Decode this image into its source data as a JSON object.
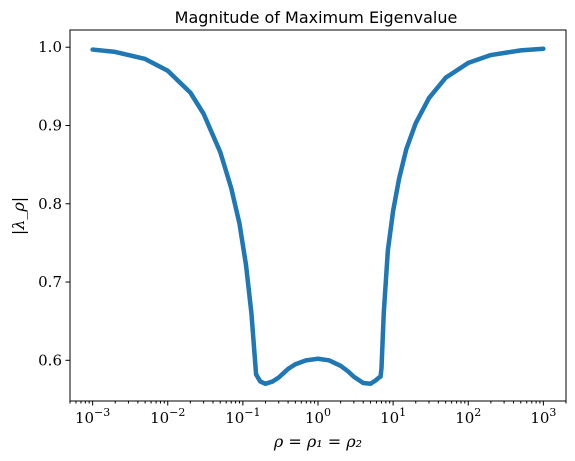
{
  "chart_data": {
    "type": "line",
    "title": "Magnitude of Maximum Eigenvalue",
    "xlabel": "ρ = ρ₁ = ρ₂",
    "ylabel": "|λ_ρ|",
    "x_scale": "log",
    "xlim": [
      0.0005,
      2000
    ],
    "ylim": [
      0.548,
      1.022
    ],
    "grid": false,
    "x_ticks": [
      {
        "value": 0.001,
        "base": "10",
        "exp": "−3"
      },
      {
        "value": 0.01,
        "base": "10",
        "exp": "−2"
      },
      {
        "value": 0.1,
        "base": "10",
        "exp": "−1"
      },
      {
        "value": 1,
        "base": "10",
        "exp": "0"
      },
      {
        "value": 10,
        "base": "10",
        "exp": "1"
      },
      {
        "value": 100,
        "base": "10",
        "exp": "2"
      },
      {
        "value": 1000,
        "base": "10",
        "exp": "3"
      }
    ],
    "y_ticks": [
      {
        "value": 0.6,
        "label": "0.6"
      },
      {
        "value": 0.7,
        "label": "0.7"
      },
      {
        "value": 0.8,
        "label": "0.8"
      },
      {
        "value": 0.9,
        "label": "0.9"
      },
      {
        "value": 1.0,
        "label": "1.0"
      }
    ],
    "series": [
      {
        "color": "#1f77b4",
        "x": [
          0.001,
          0.002,
          0.005,
          0.01,
          0.02,
          0.03,
          0.05,
          0.07,
          0.09,
          0.11,
          0.13,
          0.145,
          0.15,
          0.17,
          0.2,
          0.25,
          0.3,
          0.4,
          0.5,
          0.7,
          1,
          1.4,
          2,
          2.5,
          3,
          4,
          5,
          5.8,
          6.5,
          6.8,
          7.0,
          7.5,
          8.5,
          10,
          12,
          15,
          20,
          30,
          50,
          100,
          200,
          500,
          1000
        ],
        "y": [
          0.997,
          0.994,
          0.985,
          0.97,
          0.942,
          0.915,
          0.866,
          0.82,
          0.775,
          0.722,
          0.66,
          0.6,
          0.582,
          0.573,
          0.57,
          0.573,
          0.578,
          0.589,
          0.595,
          0.6,
          0.602,
          0.6,
          0.593,
          0.586,
          0.579,
          0.571,
          0.57,
          0.574,
          0.578,
          0.579,
          0.59,
          0.66,
          0.74,
          0.791,
          0.832,
          0.87,
          0.903,
          0.935,
          0.961,
          0.98,
          0.99,
          0.996,
          0.998
        ]
      }
    ]
  }
}
